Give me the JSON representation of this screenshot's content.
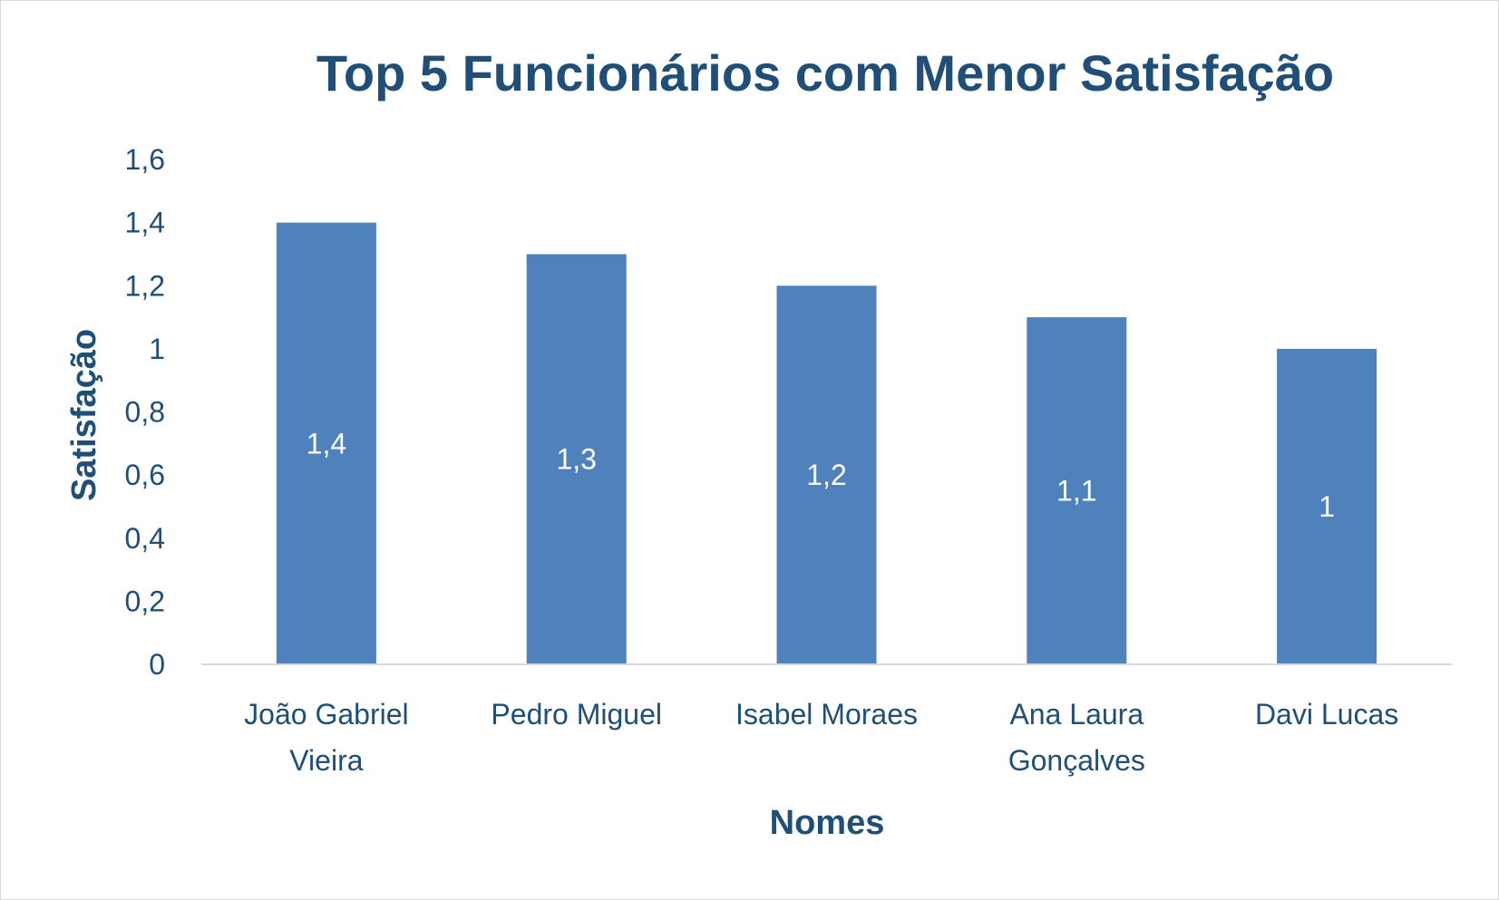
{
  "chart_data": {
    "type": "bar",
    "title": "Top 5 Funcionários com Menor Satisfação",
    "xlabel": "Nomes",
    "ylabel": "Satisfação",
    "categories": [
      [
        "João Gabriel",
        "Vieira"
      ],
      [
        "Pedro Miguel"
      ],
      [
        "Isabel Moraes"
      ],
      [
        "Ana Laura",
        "Gonçalves"
      ],
      [
        "Davi Lucas"
      ]
    ],
    "values": [
      1.4,
      1.3,
      1.2,
      1.1,
      1.0
    ],
    "data_labels": [
      "1,4",
      "1,3",
      "1,2",
      "1,1",
      "1"
    ],
    "ylim": [
      0,
      1.6
    ],
    "yticks": [
      0,
      0.2,
      0.4,
      0.6,
      0.8,
      1.0,
      1.2,
      1.4,
      1.6
    ],
    "ytick_labels": [
      "0",
      "0,2",
      "0,4",
      "0,6",
      "0,8",
      "1",
      "1,2",
      "1,4",
      "1,6"
    ],
    "grid": false,
    "legend": "none",
    "colors": {
      "bar": "#4f81bd",
      "text": "#1f4e79",
      "axis_line": "#d9d9d9",
      "data_label": "#ffffff"
    }
  }
}
